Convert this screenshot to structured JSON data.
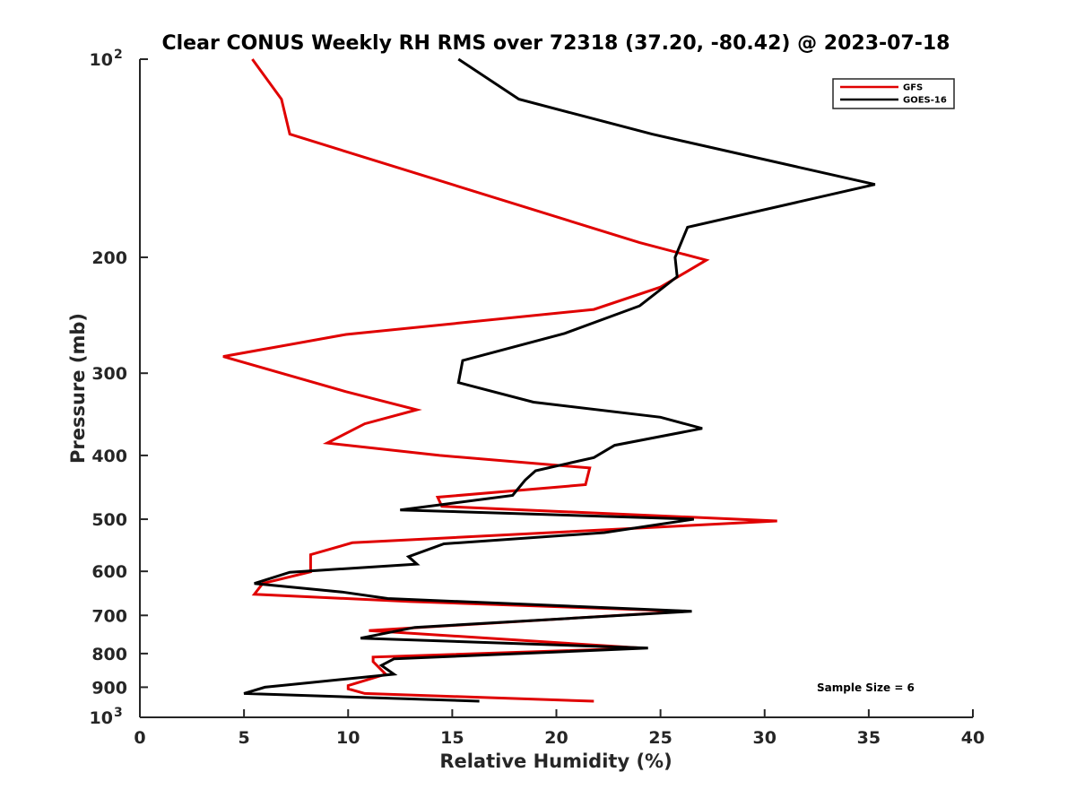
{
  "chart_data": {
    "type": "line",
    "title": "Clear CONUS Weekly RH RMS over 72318 (37.20, -80.42) @ 2023-07-18",
    "xlabel": "Relative Humidity (%)",
    "ylabel": "Pressure (mb)",
    "xlim": [
      0,
      40
    ],
    "ylim": [
      100,
      1000
    ],
    "y_scale": "log",
    "y_reversed": true,
    "x_ticks": [
      "0",
      "5",
      "10",
      "15",
      "20",
      "25",
      "30",
      "35",
      "40"
    ],
    "y_ticks": [
      {
        "value": 100,
        "base": "10",
        "exp": "2"
      },
      {
        "value": 200,
        "label": "200"
      },
      {
        "value": 300,
        "label": "300"
      },
      {
        "value": 400,
        "label": "400"
      },
      {
        "value": 500,
        "label": "500"
      },
      {
        "value": 600,
        "label": "600"
      },
      {
        "value": 700,
        "label": "700"
      },
      {
        "value": 800,
        "label": "800"
      },
      {
        "value": 900,
        "label": "900"
      },
      {
        "value": 1000,
        "base": "10",
        "exp": "3"
      }
    ],
    "grid": false,
    "legend_position": "top-right",
    "annotation": "Sample Size = 6",
    "series": [
      {
        "name": "GFS",
        "color": "#e00000",
        "points": [
          [
            5.4,
            100
          ],
          [
            6.8,
            115
          ],
          [
            7.2,
            130
          ],
          [
            24.0,
            190
          ],
          [
            27.2,
            202
          ],
          [
            25.0,
            222
          ],
          [
            21.8,
            240
          ],
          [
            9.9,
            262
          ],
          [
            4.0,
            283
          ],
          [
            9.9,
            320
          ],
          [
            13.3,
            341
          ],
          [
            10.8,
            358
          ],
          [
            9.0,
            383
          ],
          [
            14.4,
            400
          ],
          [
            21.6,
            418
          ],
          [
            21.4,
            443
          ],
          [
            14.3,
            463
          ],
          [
            14.5,
            478
          ],
          [
            30.6,
            503
          ],
          [
            10.2,
            543
          ],
          [
            8.2,
            566
          ],
          [
            8.2,
            601
          ],
          [
            5.9,
            626
          ],
          [
            5.5,
            650
          ],
          [
            13.0,
            667
          ],
          [
            26.3,
            690
          ],
          [
            11.0,
            738
          ],
          [
            24.1,
            785
          ],
          [
            11.2,
            810
          ],
          [
            11.2,
            823
          ],
          [
            11.8,
            860
          ],
          [
            10.0,
            895
          ],
          [
            10.0,
            905
          ],
          [
            10.8,
            920
          ],
          [
            21.8,
            945
          ]
        ]
      },
      {
        "name": "GOES-16",
        "color": "#000000",
        "points": [
          [
            15.3,
            100
          ],
          [
            18.2,
            115
          ],
          [
            24.6,
            130
          ],
          [
            35.3,
            155
          ],
          [
            26.3,
            180
          ],
          [
            25.7,
            200
          ],
          [
            25.8,
            214
          ],
          [
            24.0,
            237
          ],
          [
            20.4,
            261
          ],
          [
            15.5,
            287
          ],
          [
            15.3,
            310
          ],
          [
            18.9,
            332
          ],
          [
            25.0,
            350
          ],
          [
            27.0,
            364
          ],
          [
            22.8,
            386
          ],
          [
            21.8,
            403
          ],
          [
            19.0,
            422
          ],
          [
            18.5,
            436
          ],
          [
            17.9,
            460
          ],
          [
            12.5,
            484
          ],
          [
            26.6,
            500
          ],
          [
            22.3,
            524
          ],
          [
            14.6,
            545
          ],
          [
            12.9,
            570
          ],
          [
            13.3,
            585
          ],
          [
            7.2,
            602
          ],
          [
            5.5,
            626
          ],
          [
            9.7,
            645
          ],
          [
            11.9,
            660
          ],
          [
            26.5,
            690
          ],
          [
            13.2,
            730
          ],
          [
            10.6,
            758
          ],
          [
            24.4,
            785
          ],
          [
            12.2,
            815
          ],
          [
            11.6,
            834
          ],
          [
            12.2,
            860
          ],
          [
            6.0,
            900
          ],
          [
            5.0,
            920
          ],
          [
            16.3,
            945
          ]
        ]
      }
    ]
  }
}
